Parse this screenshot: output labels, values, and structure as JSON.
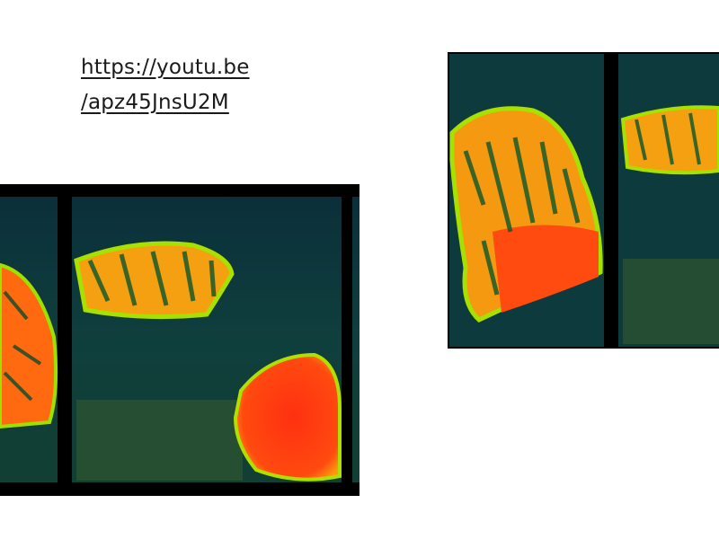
{
  "link": {
    "lines": [
      "https://youtu.be",
      "/apz45JnsU2M"
    ]
  }
}
